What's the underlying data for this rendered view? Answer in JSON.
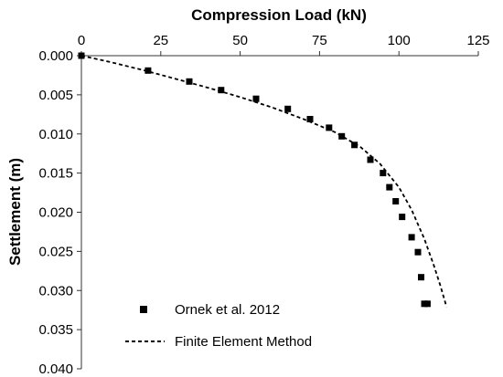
{
  "chart_data": {
    "type": "scatter",
    "title": "",
    "xlabel": "Compression Load (kN)",
    "ylabel": "Settlement (m)",
    "x_axis_position": "top",
    "y_axis_inverted": true,
    "xlim": [
      0,
      125
    ],
    "ylim": [
      0,
      0.04
    ],
    "x_ticks": [
      "0",
      "25",
      "50",
      "75",
      "100",
      "125"
    ],
    "y_ticks": [
      "0.000",
      "0.005",
      "0.010",
      "0.015",
      "0.020",
      "0.025",
      "0.030",
      "0.035",
      "0.040"
    ],
    "grid": false,
    "legend_position": "bottom-left",
    "series": [
      {
        "name": "Ornek et al. 2012",
        "style": "square-markers",
        "color": "#000000",
        "x": [
          0,
          21,
          34,
          44,
          55,
          65,
          72,
          78,
          82,
          86,
          91,
          95,
          97,
          99,
          101,
          104,
          106,
          107,
          108,
          109
        ],
        "y": [
          0.0,
          0.0019,
          0.0033,
          0.0044,
          0.0055,
          0.0068,
          0.0081,
          0.0092,
          0.0103,
          0.0114,
          0.0133,
          0.015,
          0.0168,
          0.0186,
          0.0206,
          0.0232,
          0.0251,
          0.0283,
          0.0317,
          0.0317
        ]
      },
      {
        "name": "Finite Element Method",
        "style": "dashed-line",
        "color": "#000000",
        "x": [
          0,
          10,
          20,
          30,
          40,
          50,
          60,
          70,
          80,
          88,
          94,
          100,
          104,
          108,
          111,
          113,
          115
        ],
        "y": [
          0.0,
          0.0009,
          0.0019,
          0.003,
          0.0041,
          0.0053,
          0.0066,
          0.0081,
          0.0098,
          0.0117,
          0.0138,
          0.0168,
          0.0197,
          0.0234,
          0.0268,
          0.0293,
          0.0321
        ]
      }
    ]
  }
}
